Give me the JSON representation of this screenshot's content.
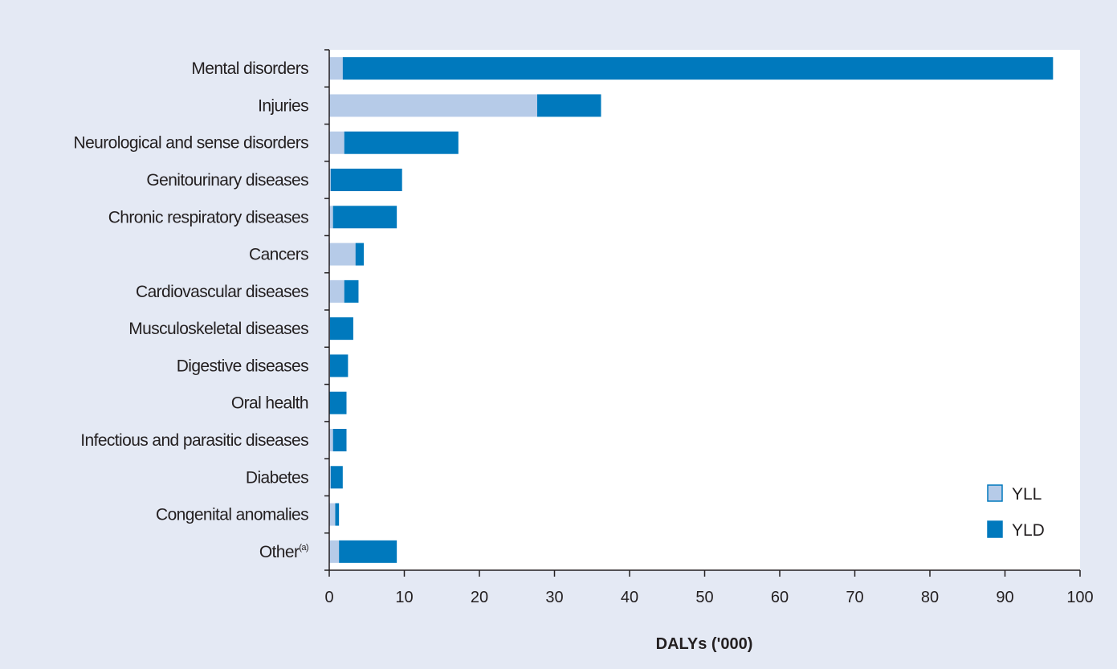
{
  "colors": {
    "background": "#e4e9f4",
    "plot_area": "#ffffff",
    "yll": "#b6cbe8",
    "yld": "#0079bd",
    "axis": "#231f20"
  },
  "chart_data": {
    "type": "bar",
    "orientation": "horizontal",
    "stacked": true,
    "categories": [
      "Mental disorders",
      "Injuries",
      "Neurological and sense disorders",
      "Genitourinary diseases",
      "Chronic respiratory diseases",
      "Cancers",
      "Cardiovascular diseases",
      "Musculoskeletal diseases",
      "Digestive diseases",
      "Oral health",
      "Infectious and parasitic diseases",
      "Diabetes",
      "Congenital anomalies",
      "Other"
    ],
    "category_superscripts": [
      "",
      "",
      "",
      "",
      "",
      "",
      "",
      "",
      "",
      "",
      "",
      "",
      "",
      "(a)"
    ],
    "series": [
      {
        "name": "YLL",
        "color": "#b6cbe8",
        "values": [
          1.8,
          27.7,
          2.0,
          0.2,
          0.5,
          3.5,
          2.0,
          0.1,
          0.1,
          0.0,
          0.5,
          0.2,
          0.8,
          1.3
        ]
      },
      {
        "name": "YLD",
        "color": "#0079bd",
        "values": [
          94.6,
          8.5,
          15.2,
          9.5,
          8.5,
          1.1,
          1.9,
          3.1,
          2.4,
          2.3,
          1.8,
          1.6,
          0.5,
          7.7
        ]
      }
    ],
    "xlabel": "DALYs ('000)",
    "ylabel": "",
    "xlim": [
      0,
      100
    ],
    "xticks": [
      "0",
      "10",
      "20",
      "30",
      "40",
      "50",
      "60",
      "70",
      "80",
      "90",
      "100"
    ],
    "grid": false,
    "legend_position": "bottom-right"
  }
}
